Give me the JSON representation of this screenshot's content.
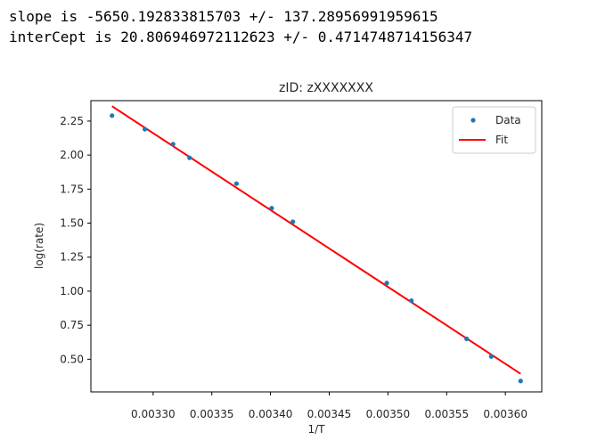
{
  "output": {
    "line1": "slope is -5650.192833815703 +/- 137.28956991959615",
    "line2": "interCept is 20.806946972112623 +/- 0.4714748714156347"
  },
  "chart_data": {
    "type": "scatter",
    "title": "zID: zXXXXXXX",
    "xlabel": "1/T",
    "ylabel": "log(rate)",
    "xlim": [
      0.003247,
      0.003631
    ],
    "ylim": [
      0.26,
      2.4
    ],
    "xticks": [
      "0.00330",
      "0.00335",
      "0.00340",
      "0.00345",
      "0.00350",
      "0.00355",
      "0.00360"
    ],
    "yticks": [
      "0.50",
      "0.75",
      "1.00",
      "1.25",
      "1.50",
      "1.75",
      "2.00",
      "2.25"
    ],
    "legend_position": "top-right",
    "colors": {
      "data": "#1f77b4",
      "fit": "#ff0000"
    },
    "series": [
      {
        "name": "Data",
        "type": "scatter",
        "x": [
          0.003265,
          0.003293,
          0.003317,
          0.003331,
          0.003371,
          0.003401,
          0.003419,
          0.003499,
          0.00352,
          0.003567,
          0.003588,
          0.003613
        ],
        "y": [
          2.29,
          2.19,
          2.08,
          1.98,
          1.79,
          1.61,
          1.51,
          1.06,
          0.93,
          0.65,
          0.52,
          0.34
        ]
      },
      {
        "name": "Fit",
        "type": "line",
        "x": [
          0.003265,
          0.003613
        ],
        "y": [
          2.359,
          0.393
        ]
      }
    ]
  }
}
